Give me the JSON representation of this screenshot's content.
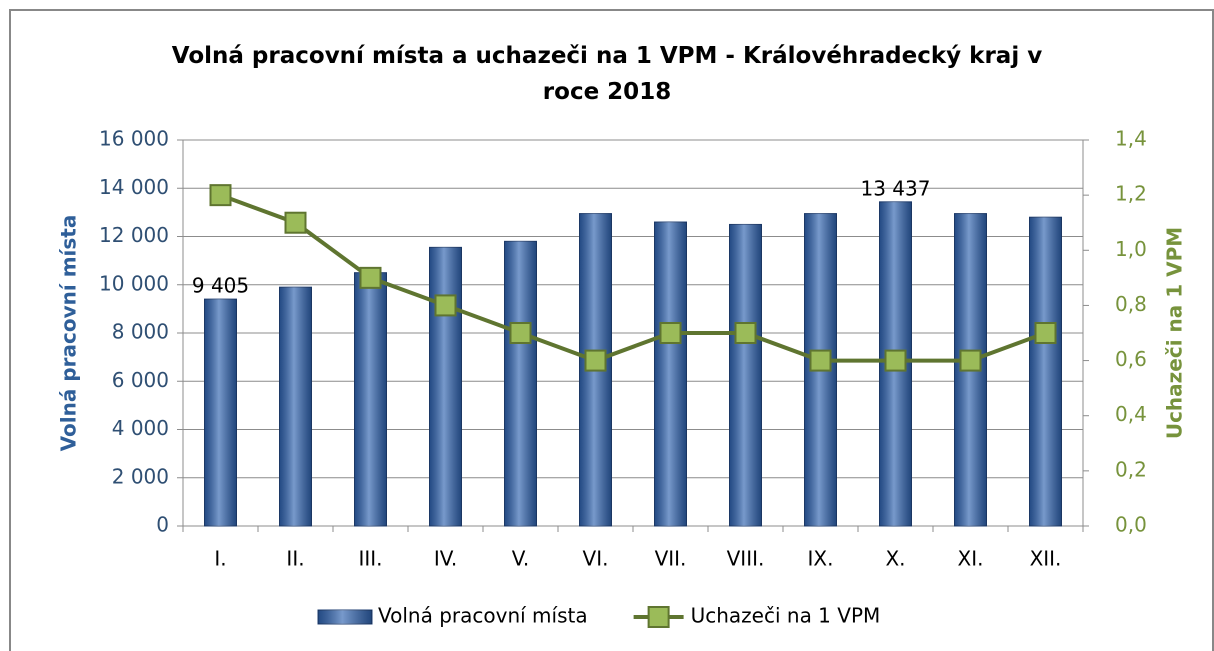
{
  "chart_data": {
    "type": "bar+line",
    "title": "Volná pracovní místa a uchazeči na 1 VPM - Královéhradecký kraj v roce 2018",
    "categories": [
      "I.",
      "II.",
      "III.",
      "IV.",
      "V.",
      "VI.",
      "VII.",
      "VIII.",
      "IX.",
      "X.",
      "XI.",
      "XII."
    ],
    "y_label": "Volná pracovní místa",
    "y2_label": "Uchazeči na 1 VPM",
    "ylim": [
      0,
      16000
    ],
    "yticks": [
      0,
      {
        "value": 2000,
        "label": "2 000"
      },
      {
        "value": 4000,
        "label": "4 000"
      },
      {
        "value": 6000,
        "label": "6 000"
      },
      {
        "value": 8000,
        "label": "8 000"
      },
      {
        "value": 10000,
        "label": "10 000"
      },
      {
        "value": 12000,
        "label": "12 000"
      },
      {
        "value": 14000,
        "label": "14 000"
      },
      {
        "value": 16000,
        "label": "16 000"
      }
    ],
    "y2lim": [
      0,
      1.4
    ],
    "y2ticks": [
      {
        "value": 0,
        "label": "0,0"
      },
      {
        "value": 0.2,
        "label": "0,2"
      },
      {
        "value": 0.4,
        "label": "0,4"
      },
      {
        "value": 0.6,
        "label": "0,6"
      },
      {
        "value": 0.8,
        "label": "0,8"
      },
      {
        "value": 1.0,
        "label": "1,0"
      },
      {
        "value": 1.2,
        "label": "1,2"
      },
      {
        "value": 1.4,
        "label": "1,4"
      }
    ],
    "grid": true,
    "legend": "bottom",
    "series": [
      {
        "name": "Volná pracovní místa",
        "type": "bar",
        "color": "#2f63b0",
        "values": [
          9405,
          9900,
          10500,
          11550,
          11800,
          12950,
          12600,
          12500,
          12950,
          13437,
          12950,
          12800
        ],
        "value_labels": [
          "9 405",
          null,
          null,
          null,
          null,
          null,
          null,
          null,
          null,
          "13 437",
          null,
          null
        ]
      },
      {
        "name": "Uchazeči na 1 VPM",
        "type": "line",
        "axis": "y2",
        "color": "#5f7530",
        "marker_color": "#9bbb59",
        "values": [
          1.2,
          1.1,
          0.9,
          0.8,
          0.7,
          0.6,
          0.7,
          0.7,
          0.6,
          0.6,
          0.6,
          0.7
        ]
      }
    ]
  }
}
